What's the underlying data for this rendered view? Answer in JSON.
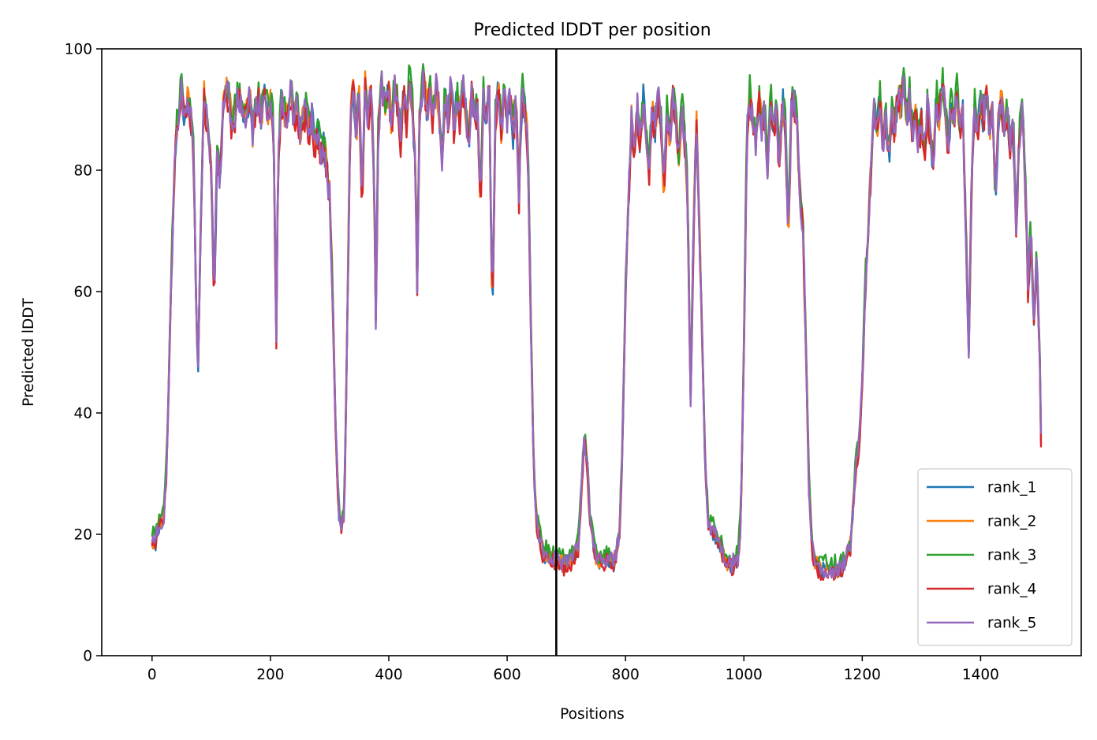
{
  "chart_data": {
    "type": "line",
    "title": "Predicted lDDT per position",
    "xlabel": "Positions",
    "ylabel": "Predicted lDDT",
    "xlim": [
      -85,
      1570
    ],
    "ylim": [
      0,
      100
    ],
    "xticks": [
      0,
      200,
      400,
      600,
      800,
      1000,
      1200,
      1400
    ],
    "yticks": [
      0,
      20,
      40,
      60,
      80,
      100
    ],
    "grid": false,
    "legend_position": "lower-right",
    "divider_x": 683,
    "base_profile": [
      [
        0,
        19
      ],
      [
        5,
        18
      ],
      [
        10,
        21
      ],
      [
        15,
        22
      ],
      [
        20,
        23
      ],
      [
        25,
        32
      ],
      [
        30,
        52
      ],
      [
        35,
        70
      ],
      [
        40,
        85
      ],
      [
        45,
        90
      ],
      [
        50,
        93
      ],
      [
        55,
        88
      ],
      [
        60,
        92
      ],
      [
        65,
        89
      ],
      [
        70,
        83
      ],
      [
        75,
        55
      ],
      [
        78,
        48
      ],
      [
        82,
        70
      ],
      [
        88,
        92
      ],
      [
        95,
        86
      ],
      [
        100,
        80
      ],
      [
        105,
        58
      ],
      [
        110,
        82
      ],
      [
        115,
        78
      ],
      [
        120,
        90
      ],
      [
        125,
        93
      ],
      [
        130,
        92
      ],
      [
        135,
        87
      ],
      [
        140,
        89
      ],
      [
        145,
        92
      ],
      [
        150,
        91
      ],
      [
        155,
        88
      ],
      [
        160,
        90
      ],
      [
        165,
        92
      ],
      [
        170,
        86
      ],
      [
        175,
        90
      ],
      [
        180,
        92
      ],
      [
        185,
        88
      ],
      [
        190,
        93
      ],
      [
        195,
        89
      ],
      [
        200,
        91
      ],
      [
        205,
        88
      ],
      [
        210,
        52
      ],
      [
        213,
        80
      ],
      [
        218,
        92
      ],
      [
        225,
        88
      ],
      [
        230,
        90
      ],
      [
        235,
        93
      ],
      [
        240,
        87
      ],
      [
        245,
        91
      ],
      [
        250,
        86
      ],
      [
        255,
        88
      ],
      [
        260,
        90
      ],
      [
        265,
        86
      ],
      [
        270,
        89
      ],
      [
        275,
        84
      ],
      [
        280,
        86
      ],
      [
        285,
        83
      ],
      [
        290,
        84
      ],
      [
        295,
        80
      ],
      [
        300,
        76
      ],
      [
        305,
        60
      ],
      [
        310,
        38
      ],
      [
        315,
        24
      ],
      [
        320,
        21
      ],
      [
        325,
        24
      ],
      [
        330,
        55
      ],
      [
        335,
        88
      ],
      [
        340,
        94
      ],
      [
        345,
        86
      ],
      [
        350,
        92
      ],
      [
        355,
        75
      ],
      [
        360,
        94
      ],
      [
        365,
        88
      ],
      [
        370,
        93
      ],
      [
        375,
        80
      ],
      [
        378,
        55
      ],
      [
        382,
        85
      ],
      [
        388,
        94
      ],
      [
        395,
        90
      ],
      [
        400,
        93
      ],
      [
        405,
        87
      ],
      [
        410,
        94
      ],
      [
        415,
        90
      ],
      [
        420,
        85
      ],
      [
        425,
        93
      ],
      [
        430,
        88
      ],
      [
        435,
        95
      ],
      [
        440,
        90
      ],
      [
        445,
        80
      ],
      [
        448,
        62
      ],
      [
        452,
        88
      ],
      [
        458,
        95
      ],
      [
        465,
        90
      ],
      [
        470,
        93
      ],
      [
        475,
        88
      ],
      [
        480,
        94
      ],
      [
        485,
        90
      ],
      [
        490,
        82
      ],
      [
        495,
        93
      ],
      [
        500,
        88
      ],
      [
        505,
        94
      ],
      [
        510,
        86
      ],
      [
        515,
        92
      ],
      [
        520,
        88
      ],
      [
        525,
        94
      ],
      [
        530,
        90
      ],
      [
        535,
        84
      ],
      [
        540,
        93
      ],
      [
        545,
        88
      ],
      [
        550,
        90
      ],
      [
        555,
        74
      ],
      [
        560,
        92
      ],
      [
        565,
        89
      ],
      [
        570,
        93
      ],
      [
        575,
        55
      ],
      [
        580,
        88
      ],
      [
        585,
        94
      ],
      [
        590,
        86
      ],
      [
        595,
        92
      ],
      [
        600,
        88
      ],
      [
        605,
        93
      ],
      [
        610,
        86
      ],
      [
        615,
        91
      ],
      [
        620,
        75
      ],
      [
        625,
        93
      ],
      [
        630,
        90
      ],
      [
        635,
        84
      ],
      [
        640,
        55
      ],
      [
        645,
        30
      ],
      [
        650,
        22
      ],
      [
        655,
        19
      ],
      [
        660,
        17
      ],
      [
        670,
        16
      ],
      [
        680,
        16
      ],
      [
        690,
        15
      ],
      [
        700,
        15
      ],
      [
        710,
        16
      ],
      [
        720,
        18
      ],
      [
        730,
        35
      ],
      [
        735,
        33
      ],
      [
        740,
        22
      ],
      [
        750,
        16
      ],
      [
        760,
        15
      ],
      [
        770,
        16
      ],
      [
        780,
        15
      ],
      [
        790,
        20
      ],
      [
        795,
        35
      ],
      [
        800,
        60
      ],
      [
        805,
        75
      ],
      [
        810,
        88
      ],
      [
        815,
        82
      ],
      [
        820,
        90
      ],
      [
        825,
        84
      ],
      [
        830,
        92
      ],
      [
        835,
        86
      ],
      [
        840,
        80
      ],
      [
        845,
        90
      ],
      [
        850,
        87
      ],
      [
        855,
        92
      ],
      [
        860,
        88
      ],
      [
        865,
        76
      ],
      [
        870,
        90
      ],
      [
        875,
        85
      ],
      [
        880,
        92
      ],
      [
        885,
        88
      ],
      [
        890,
        82
      ],
      [
        895,
        90
      ],
      [
        900,
        85
      ],
      [
        905,
        75
      ],
      [
        910,
        42
      ],
      [
        915,
        70
      ],
      [
        920,
        88
      ],
      [
        925,
        70
      ],
      [
        930,
        50
      ],
      [
        935,
        30
      ],
      [
        940,
        22
      ],
      [
        950,
        20
      ],
      [
        960,
        18
      ],
      [
        965,
        16
      ],
      [
        970,
        15
      ],
      [
        980,
        15
      ],
      [
        990,
        16
      ],
      [
        995,
        22
      ],
      [
        1000,
        50
      ],
      [
        1005,
        85
      ],
      [
        1010,
        92
      ],
      [
        1015,
        88
      ],
      [
        1020,
        84
      ],
      [
        1025,
        92
      ],
      [
        1030,
        87
      ],
      [
        1035,
        90
      ],
      [
        1040,
        80
      ],
      [
        1045,
        92
      ],
      [
        1050,
        86
      ],
      [
        1055,
        90
      ],
      [
        1060,
        80
      ],
      [
        1065,
        92
      ],
      [
        1070,
        87
      ],
      [
        1075,
        68
      ],
      [
        1080,
        90
      ],
      [
        1085,
        92
      ],
      [
        1090,
        86
      ],
      [
        1095,
        75
      ],
      [
        1100,
        70
      ],
      [
        1105,
        50
      ],
      [
        1110,
        28
      ],
      [
        1115,
        18
      ],
      [
        1120,
        15
      ],
      [
        1130,
        14
      ],
      [
        1140,
        14
      ],
      [
        1150,
        14
      ],
      [
        1160,
        14
      ],
      [
        1170,
        15
      ],
      [
        1180,
        18
      ],
      [
        1185,
        25
      ],
      [
        1190,
        32
      ],
      [
        1195,
        35
      ],
      [
        1200,
        45
      ],
      [
        1205,
        60
      ],
      [
        1210,
        70
      ],
      [
        1215,
        80
      ],
      [
        1220,
        90
      ],
      [
        1225,
        86
      ],
      [
        1230,
        92
      ],
      [
        1235,
        84
      ],
      [
        1240,
        88
      ],
      [
        1245,
        82
      ],
      [
        1250,
        90
      ],
      [
        1255,
        86
      ],
      [
        1260,
        93
      ],
      [
        1265,
        90
      ],
      [
        1270,
        95
      ],
      [
        1275,
        88
      ],
      [
        1280,
        92
      ],
      [
        1285,
        86
      ],
      [
        1290,
        90
      ],
      [
        1295,
        84
      ],
      [
        1300,
        88
      ],
      [
        1305,
        82
      ],
      [
        1310,
        90
      ],
      [
        1315,
        86
      ],
      [
        1320,
        80
      ],
      [
        1325,
        92
      ],
      [
        1330,
        88
      ],
      [
        1335,
        95
      ],
      [
        1340,
        90
      ],
      [
        1345,
        84
      ],
      [
        1350,
        90
      ],
      [
        1355,
        88
      ],
      [
        1360,
        93
      ],
      [
        1365,
        86
      ],
      [
        1370,
        90
      ],
      [
        1375,
        70
      ],
      [
        1380,
        50
      ],
      [
        1385,
        80
      ],
      [
        1390,
        90
      ],
      [
        1395,
        86
      ],
      [
        1400,
        92
      ],
      [
        1405,
        88
      ],
      [
        1410,
        93
      ],
      [
        1415,
        86
      ],
      [
        1420,
        90
      ],
      [
        1425,
        75
      ],
      [
        1430,
        88
      ],
      [
        1435,
        92
      ],
      [
        1440,
        86
      ],
      [
        1445,
        90
      ],
      [
        1450,
        84
      ],
      [
        1455,
        88
      ],
      [
        1460,
        70
      ],
      [
        1465,
        85
      ],
      [
        1470,
        90
      ],
      [
        1475,
        80
      ],
      [
        1480,
        60
      ],
      [
        1485,
        70
      ],
      [
        1490,
        55
      ],
      [
        1495,
        65
      ],
      [
        1500,
        48
      ],
      [
        1502,
        35
      ]
    ],
    "series": [
      {
        "name": "rank_1",
        "color": "#1f77b4",
        "offset": 0.0,
        "seed": 1
      },
      {
        "name": "rank_2",
        "color": "#ff7f0e",
        "offset": 0.3,
        "seed": 2
      },
      {
        "name": "rank_3",
        "color": "#2ca02c",
        "offset": 1.2,
        "seed": 3
      },
      {
        "name": "rank_4",
        "color": "#d62728",
        "offset": -0.4,
        "seed": 4
      },
      {
        "name": "rank_5",
        "color": "#9467bd",
        "offset": 0.2,
        "seed": 5
      }
    ]
  }
}
